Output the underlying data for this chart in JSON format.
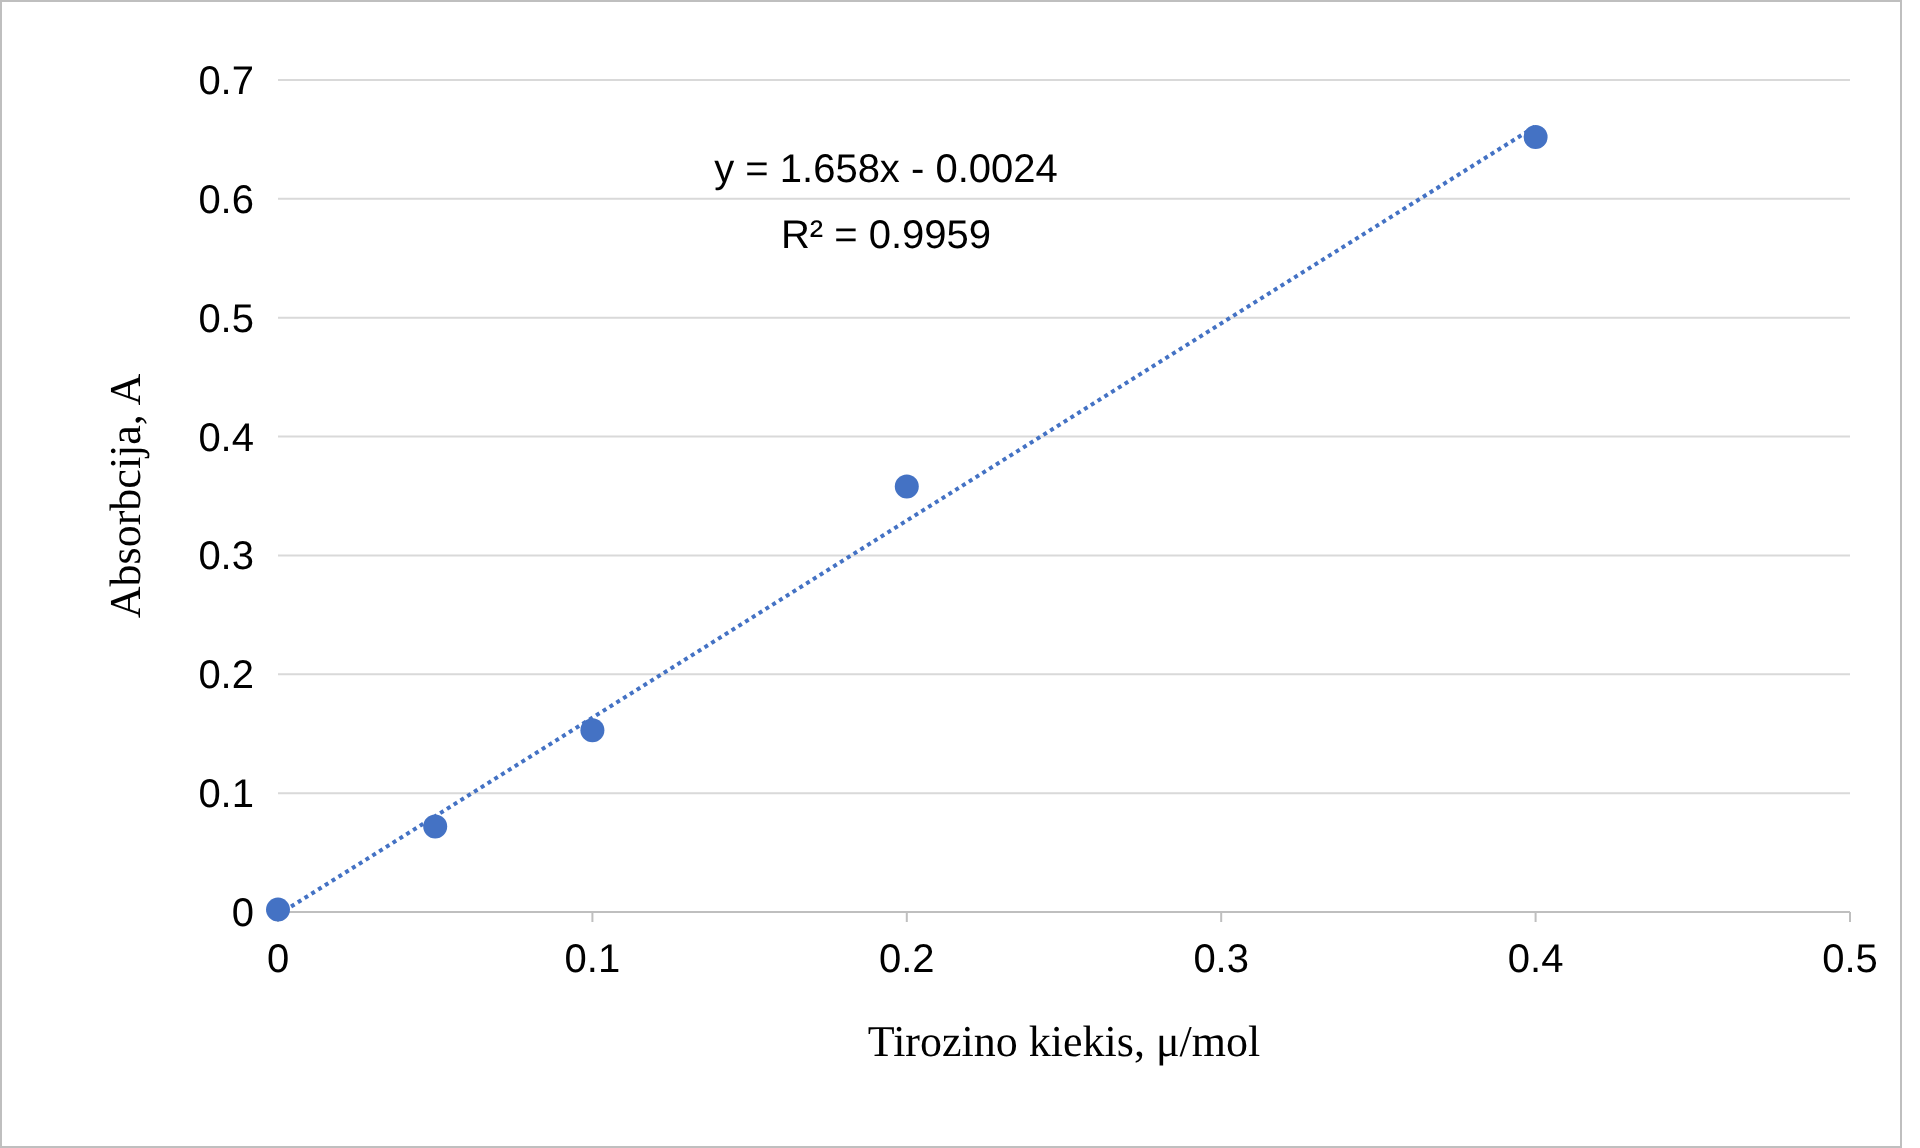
{
  "chart_data": {
    "type": "scatter",
    "xlabel": "Tirozino kiekis, μ/mol",
    "ylabel": "Absorbcija, A",
    "xlim": [
      0,
      0.5
    ],
    "xticks": [
      0,
      0.1,
      0.2,
      0.3,
      0.4,
      0.5
    ],
    "ylim": [
      0,
      0.7
    ],
    "yticks": [
      0,
      0.1,
      0.2,
      0.3,
      0.4,
      0.5,
      0.6,
      0.7
    ],
    "grid": "y",
    "marker": "circle",
    "series": [
      {
        "color": "#4472c4",
        "x": [
          0,
          0.05,
          0.1,
          0.2,
          0.4
        ],
        "values": [
          0.002,
          0.072,
          0.153,
          0.358,
          0.652
        ]
      },
      {
        "type": "line",
        "color": "#4472c4",
        "line_style": "dotted",
        "marker": "none",
        "x": [
          0.002,
          0.4
        ],
        "values": [
          0.001,
          0.661
        ]
      }
    ],
    "annotations": [
      "y = 1.658x - 0.0024",
      "R² = 0.9959"
    ]
  }
}
